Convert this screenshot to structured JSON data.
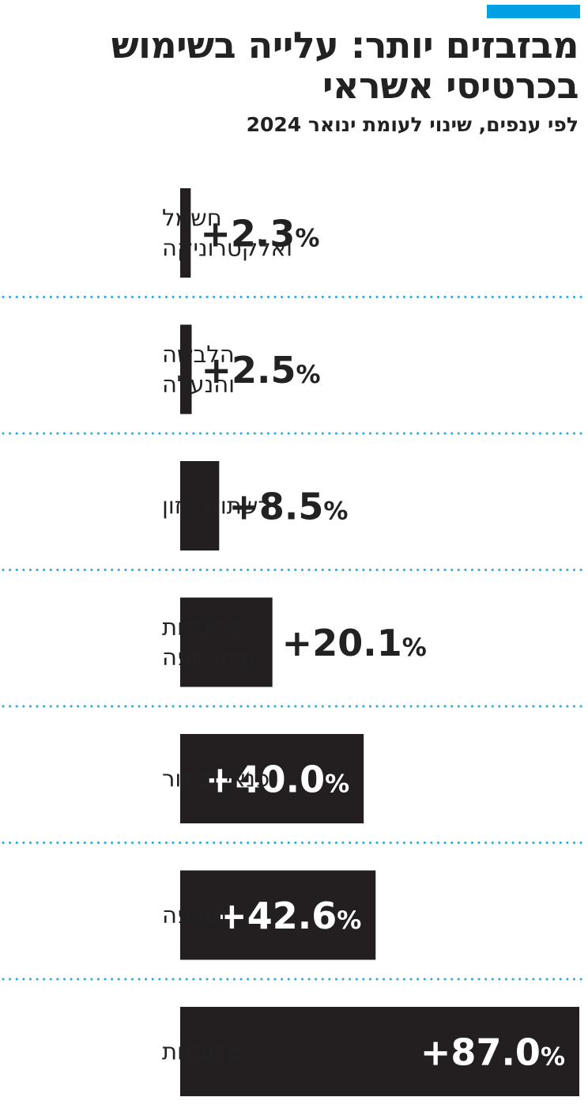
{
  "colors": {
    "accent": "#00A0E3",
    "bar": "#231F20",
    "text": "#222222",
    "divider": "#2FA8DC"
  },
  "header": {
    "title": "מבזבזים יותר: עלייה בשימוש בכרטיסי אשראי",
    "subtitle": "לפי ענפים, שינוי לעומת ינואר 2024"
  },
  "chart_data": {
    "type": "bar",
    "orientation": "horizontal",
    "title": "מבזבזים יותר: עלייה בשימוש בכרטיסי אשראי",
    "subtitle": "לפי ענפים, שינוי לעומת ינואר 2024",
    "unit": "%",
    "xlim": [
      0,
      87.0
    ],
    "grid": false,
    "categories": [
      [
        "חשמל",
        "ואלקטרוניקה"
      ],
      [
        "הלבשה",
        "והנעלה"
      ],
      [
        "רשתות מזון"
      ],
      [
        "מסעדות",
        "ובתי קפה"
      ],
      [
        "פנאי ובידור"
      ],
      [
        "תעופה"
      ],
      [
        "מלונאות"
      ]
    ],
    "values": [
      2.3,
      2.5,
      8.5,
      20.1,
      40.0,
      42.6,
      87.0
    ],
    "value_labels": [
      "+2.3",
      "+2.5",
      "+8.5",
      "+20.1",
      "+40.0",
      "+42.6",
      "+87.0"
    ]
  }
}
